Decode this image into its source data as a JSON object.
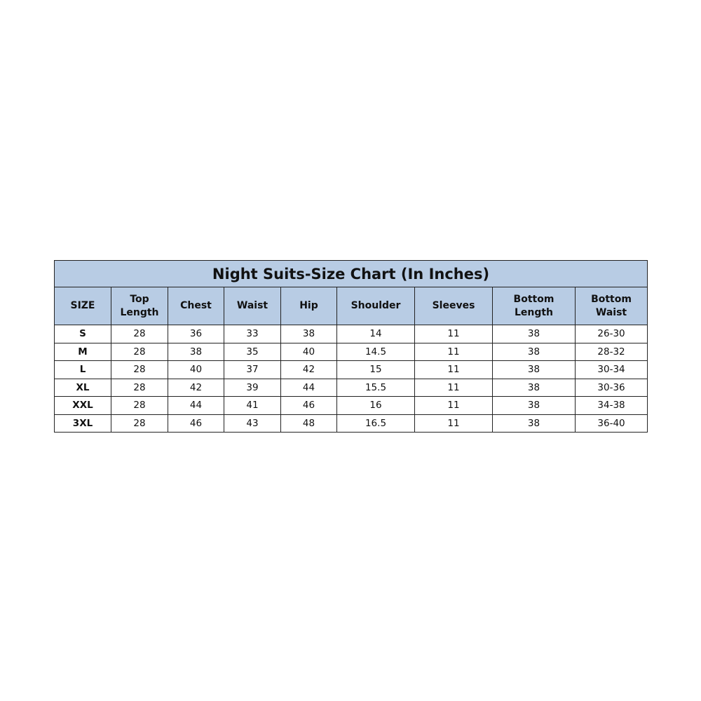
{
  "title": "Night Suits-Size Chart (In Inches)",
  "header_color": "#b8cce4",
  "columns": [
    [
      "SIZE"
    ],
    [
      "Top",
      "Length"
    ],
    [
      "Chest"
    ],
    [
      "Waist"
    ],
    [
      "Hip"
    ],
    [
      "Shoulder"
    ],
    [
      "Sleeves"
    ],
    [
      "Bottom",
      "Length"
    ],
    [
      "Bottom",
      "Waist"
    ]
  ],
  "rows": [
    [
      "S",
      "28",
      "36",
      "33",
      "38",
      "14",
      "11",
      "38",
      "26-30"
    ],
    [
      "M",
      "28",
      "38",
      "35",
      "40",
      "14.5",
      "11",
      "38",
      "28-32"
    ],
    [
      "L",
      "28",
      "40",
      "37",
      "42",
      "15",
      "11",
      "38",
      "30-34"
    ],
    [
      "XL",
      "28",
      "42",
      "39",
      "44",
      "15.5",
      "11",
      "38",
      "30-36"
    ],
    [
      "XXL",
      "28",
      "44",
      "41",
      "46",
      "16",
      "11",
      "38",
      "34-38"
    ],
    [
      "3XL",
      "28",
      "46",
      "43",
      "48",
      "16.5",
      "11",
      "38",
      "36-40"
    ]
  ]
}
